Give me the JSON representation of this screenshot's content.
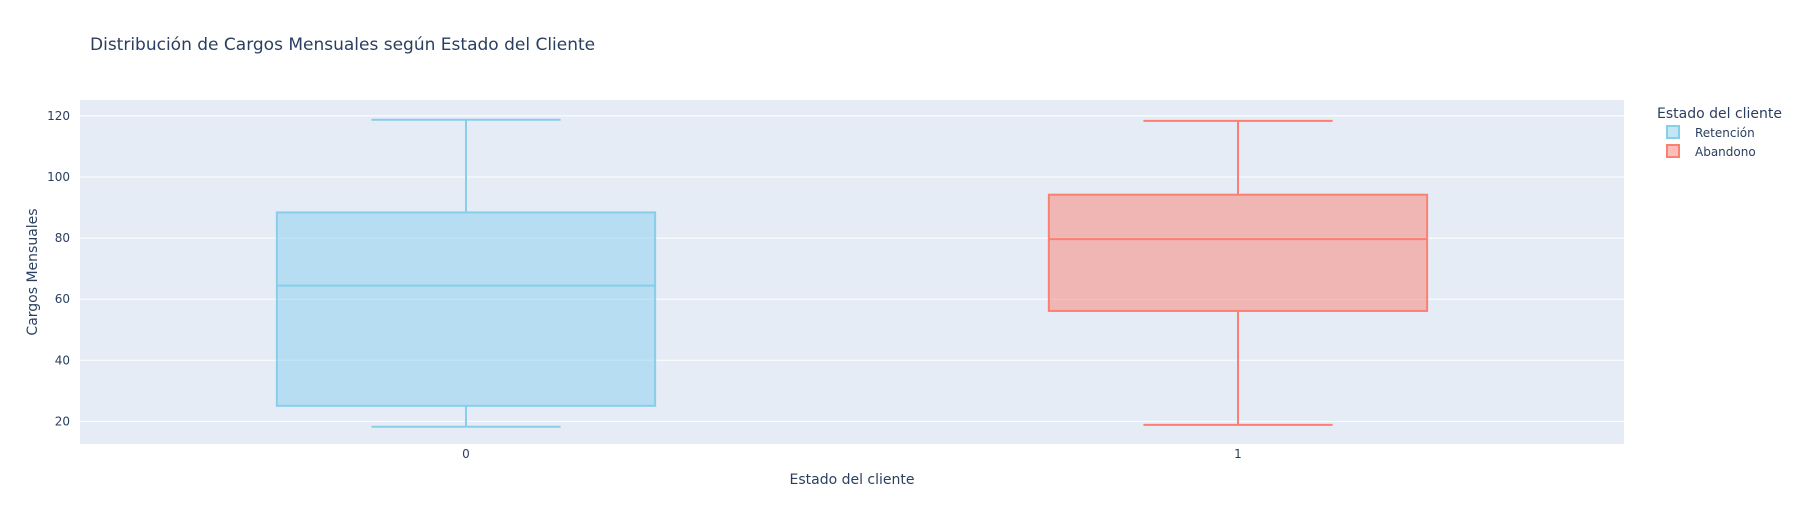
{
  "chart_data": {
    "type": "box",
    "title": "Distribución de Cargos Mensuales según Estado del Cliente",
    "xlabel": "Estado del cliente",
    "ylabel": "Cargos Mensuales",
    "categories": [
      "0",
      "1"
    ],
    "ylim": [
      12.6,
      125.2
    ],
    "yticks": [
      20,
      40,
      60,
      80,
      100,
      120
    ],
    "grid": true,
    "legend": {
      "title": "Estado del cliente",
      "placement": "top-right"
    },
    "series": [
      {
        "name": "Retención",
        "category": "0",
        "min": 18.25,
        "q1": 25.1,
        "median": 64.43,
        "q3": 88.4,
        "max": 118.75,
        "color": "#87CEEB"
      },
      {
        "name": "Abandono",
        "category": "1",
        "min": 18.85,
        "q1": 56.15,
        "median": 79.65,
        "q3": 94.2,
        "max": 118.35,
        "color": "#FA8072"
      }
    ]
  },
  "colors": {
    "plot_background": "#E5ECF6",
    "gridline": "#FFFFFF",
    "text": "#2A3F5F"
  }
}
